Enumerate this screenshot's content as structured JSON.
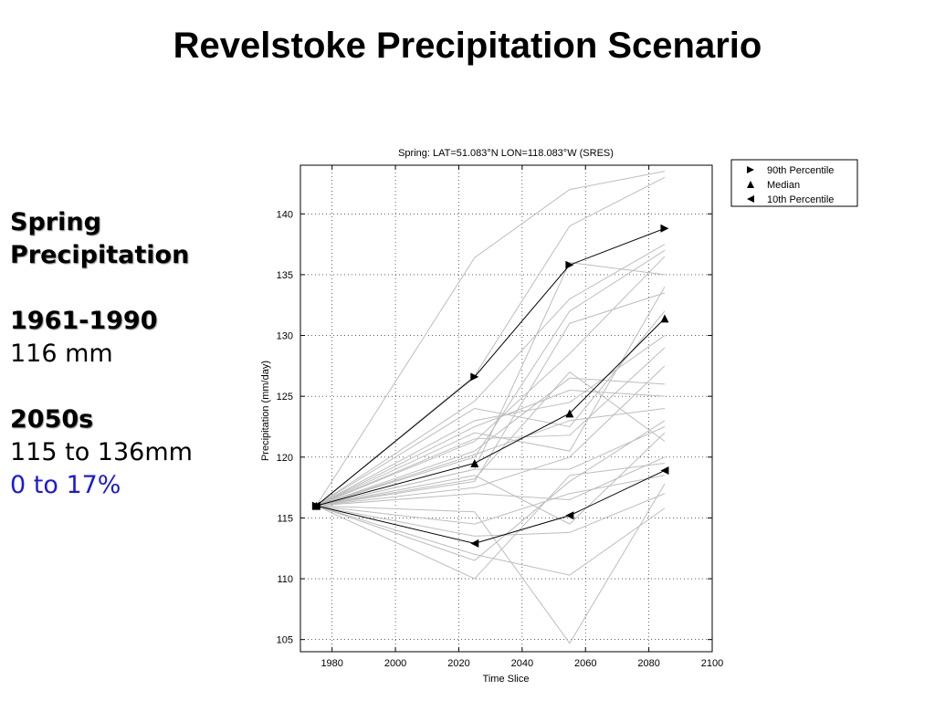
{
  "slide": {
    "title": "Revelstoke Precipitation Scenario",
    "side_text": {
      "heading_line1": "Spring",
      "heading_line2": "Precipitation",
      "baseline_period": "1961-1990",
      "baseline_value": "116 mm",
      "future_period": "2050s",
      "future_range": "115 to 136mm",
      "future_change": "0 to 17%"
    }
  },
  "chart_data": {
    "type": "line",
    "title": "Spring: LAT=51.083°N LON=118.083°W (SRES)",
    "xlabel": "Time Slice",
    "ylabel": "Precipitation (mm/day)",
    "xlim": [
      1970,
      2100
    ],
    "ylim": [
      104,
      144
    ],
    "xticks": [
      1980,
      2000,
      2020,
      2040,
      2060,
      2080,
      2100
    ],
    "yticks": [
      105,
      110,
      115,
      120,
      125,
      130,
      135,
      140
    ],
    "grid": true,
    "legend_position": "top-right-outside",
    "x": [
      1975,
      2025,
      2055,
      2085
    ],
    "series": [
      {
        "name": "90th Percentile",
        "marker": "triangle-right",
        "color": "#000000",
        "values": [
          116,
          126.6,
          135.8,
          138.8
        ]
      },
      {
        "name": "Median",
        "marker": "triangle-up",
        "color": "#000000",
        "values": [
          116,
          119.5,
          123.6,
          131.4
        ]
      },
      {
        "name": "10th Percentile",
        "marker": "triangle-left",
        "color": "#000000",
        "values": [
          116,
          112.9,
          115.2,
          118.9
        ]
      }
    ],
    "scenario_series_color": "#bdbdbd",
    "scenario_series": [
      [
        116,
        136.4,
        142.0,
        143.5
      ],
      [
        116,
        126.7,
        139.0,
        143.0
      ],
      [
        116,
        124.6,
        133.0,
        137.5
      ],
      [
        116,
        121.3,
        128.5,
        136.5
      ],
      [
        116,
        119.0,
        136.0,
        135.0
      ],
      [
        116,
        118.0,
        131.0,
        133.5
      ],
      [
        116,
        124.0,
        122.5,
        132.0
      ],
      [
        116,
        123.0,
        124.5,
        130.0
      ],
      [
        116,
        121.5,
        121.8,
        129.0
      ],
      [
        116,
        117.5,
        120.0,
        127.5
      ],
      [
        116,
        120.5,
        126.5,
        126.0
      ],
      [
        116,
        122.5,
        125.5,
        125.0
      ],
      [
        116,
        120.2,
        123.0,
        124.0
      ],
      [
        116,
        119.0,
        119.0,
        122.5
      ],
      [
        116,
        118.2,
        127.0,
        121.3
      ],
      [
        116,
        117.0,
        116.5,
        120.0
      ],
      [
        116,
        114.5,
        117.0,
        118.5
      ],
      [
        116,
        113.5,
        113.8,
        117.0
      ],
      [
        116,
        110.0,
        118.5,
        119.5
      ],
      [
        116,
        115.5,
        104.7,
        117.8
      ],
      [
        116,
        112.0,
        110.3,
        115.8
      ],
      [
        116,
        111.5,
        118.0,
        123.0
      ],
      [
        116,
        122.0,
        120.5,
        134.0
      ],
      [
        116,
        120.0,
        132.0,
        137.0
      ],
      [
        116,
        118.5,
        114.5,
        122.0
      ]
    ]
  }
}
